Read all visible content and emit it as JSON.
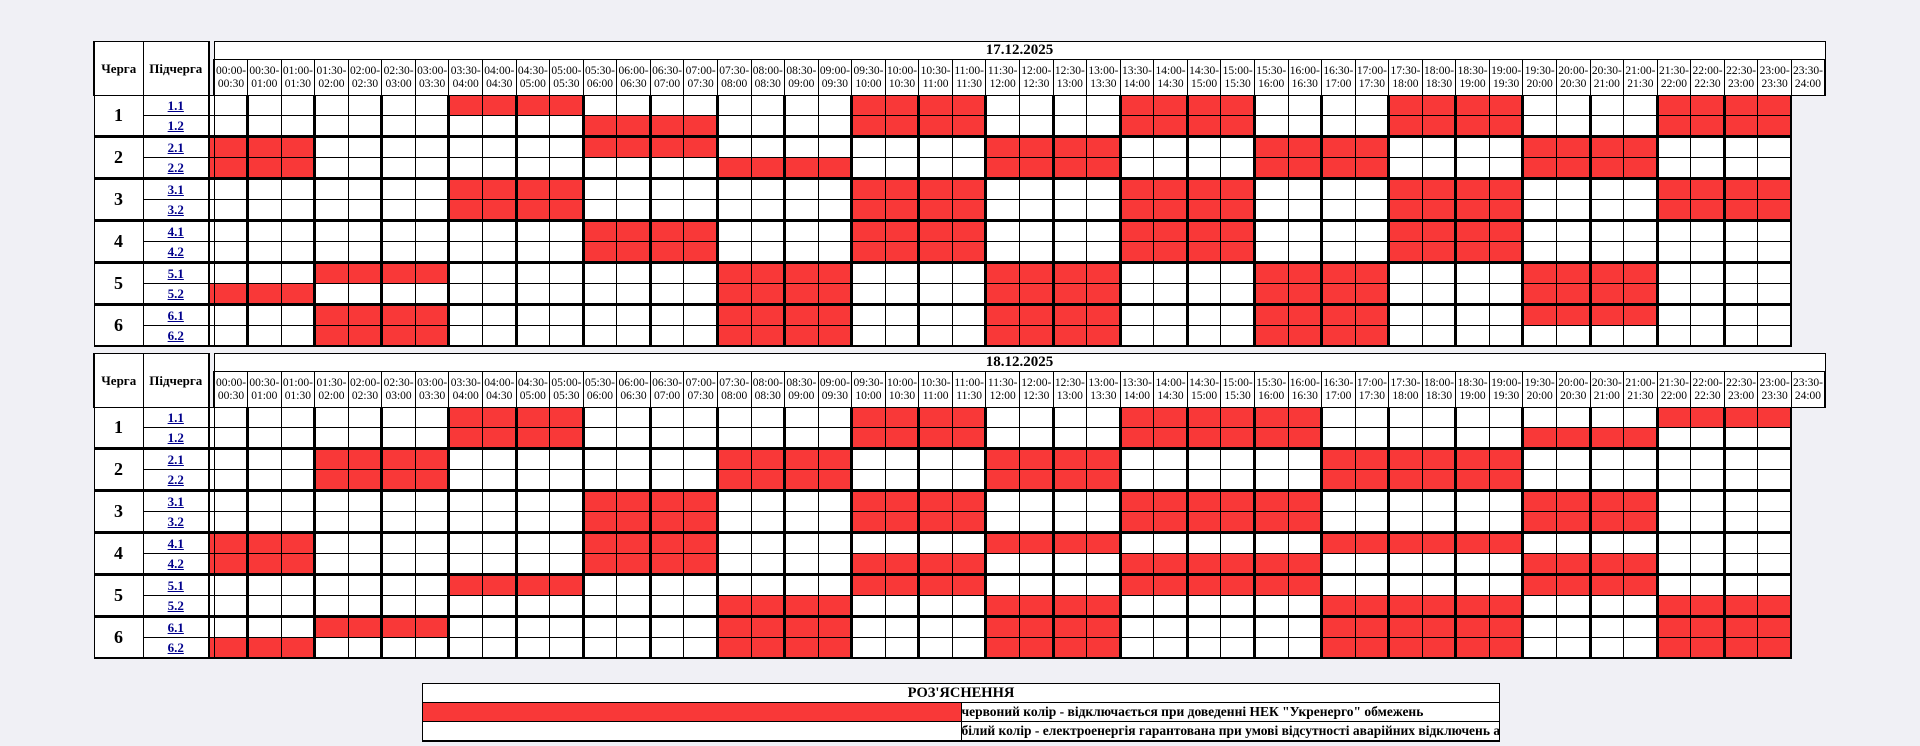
{
  "page": {
    "background": "#F0F0F5"
  },
  "colors": {
    "outage_red": "#F93838",
    "cell_white": "#FFFFFF",
    "border": "#000000",
    "subqueue_link_blue": "#00008B"
  },
  "table_header": {
    "queue": "Черга",
    "subqueue": "Підчерга"
  },
  "time_slots": [
    {
      "from": "00:00",
      "to": "00:30"
    },
    {
      "from": "00:30",
      "to": "01:00"
    },
    {
      "from": "01:00",
      "to": "01:30"
    },
    {
      "from": "01:30",
      "to": "02:00"
    },
    {
      "from": "02:00",
      "to": "02:30"
    },
    {
      "from": "02:30",
      "to": "03:00"
    },
    {
      "from": "03:00",
      "to": "03:30"
    },
    {
      "from": "03:30",
      "to": "04:00"
    },
    {
      "from": "04:00",
      "to": "04:30"
    },
    {
      "from": "04:30",
      "to": "05:00"
    },
    {
      "from": "05:00",
      "to": "05:30"
    },
    {
      "from": "05:30",
      "to": "06:00"
    },
    {
      "from": "06:00",
      "to": "06:30"
    },
    {
      "from": "06:30",
      "to": "07:00"
    },
    {
      "from": "07:00",
      "to": "07:30"
    },
    {
      "from": "07:30",
      "to": "08:00"
    },
    {
      "from": "08:00",
      "to": "08:30"
    },
    {
      "from": "08:30",
      "to": "09:00"
    },
    {
      "from": "09:00",
      "to": "09:30"
    },
    {
      "from": "09:30",
      "to": "10:00"
    },
    {
      "from": "10:00",
      "to": "10:30"
    },
    {
      "from": "10:30",
      "to": "11:00"
    },
    {
      "from": "11:00",
      "to": "11:30"
    },
    {
      "from": "11:30",
      "to": "12:00"
    },
    {
      "from": "12:00",
      "to": "12:30"
    },
    {
      "from": "12:30",
      "to": "13:00"
    },
    {
      "from": "13:00",
      "to": "13:30"
    },
    {
      "from": "13:30",
      "to": "14:00"
    },
    {
      "from": "14:00",
      "to": "14:30"
    },
    {
      "from": "14:30",
      "to": "15:00"
    },
    {
      "from": "15:00",
      "to": "15:30"
    },
    {
      "from": "15:30",
      "to": "16:00"
    },
    {
      "from": "16:00",
      "to": "16:30"
    },
    {
      "from": "16:30",
      "to": "17:00"
    },
    {
      "from": "17:00",
      "to": "17:30"
    },
    {
      "from": "17:30",
      "to": "18:00"
    },
    {
      "from": "18:00",
      "to": "18:30"
    },
    {
      "from": "18:30",
      "to": "19:00"
    },
    {
      "from": "19:00",
      "to": "19:30"
    },
    {
      "from": "19:30",
      "to": "20:00"
    },
    {
      "from": "20:00",
      "to": "20:30"
    },
    {
      "from": "20:30",
      "to": "21:00"
    },
    {
      "from": "21:00",
      "to": "21:30"
    },
    {
      "from": "21:30",
      "to": "22:00"
    },
    {
      "from": "22:00",
      "to": "22:30"
    },
    {
      "from": "22:30",
      "to": "23:00"
    },
    {
      "from": "23:00",
      "to": "23:30"
    },
    {
      "from": "23:30",
      "to": "24:00"
    }
  ],
  "schedules": [
    {
      "date": "17.12.2025",
      "rows": [
        {
          "queue": "1",
          "subqueue": "1.1",
          "red_ranges": [
            [
              9,
              12
            ],
            [
              21,
              24
            ],
            [
              29,
              32
            ],
            [
              37,
              40
            ],
            [
              45,
              48
            ]
          ]
        },
        {
          "queue": "1",
          "subqueue": "1.2",
          "red_ranges": [
            [
              13,
              16
            ],
            [
              21,
              24
            ],
            [
              29,
              32
            ],
            [
              37,
              40
            ],
            [
              45,
              48
            ]
          ]
        },
        {
          "queue": "2",
          "subqueue": "2.1",
          "red_ranges": [
            [
              1,
              4
            ],
            [
              13,
              16
            ],
            [
              25,
              28
            ],
            [
              33,
              36
            ],
            [
              41,
              44
            ]
          ]
        },
        {
          "queue": "2",
          "subqueue": "2.2",
          "red_ranges": [
            [
              1,
              4
            ],
            [
              17,
              20
            ],
            [
              25,
              28
            ],
            [
              33,
              36
            ],
            [
              41,
              44
            ]
          ]
        },
        {
          "queue": "3",
          "subqueue": "3.1",
          "red_ranges": [
            [
              9,
              12
            ],
            [
              21,
              24
            ],
            [
              29,
              32
            ],
            [
              37,
              40
            ],
            [
              45,
              48
            ]
          ]
        },
        {
          "queue": "3",
          "subqueue": "3.2",
          "red_ranges": [
            [
              9,
              12
            ],
            [
              21,
              24
            ],
            [
              29,
              32
            ],
            [
              37,
              40
            ],
            [
              45,
              48
            ]
          ]
        },
        {
          "queue": "4",
          "subqueue": "4.1",
          "red_ranges": [
            [
              13,
              16
            ],
            [
              21,
              24
            ],
            [
              29,
              32
            ],
            [
              37,
              40
            ]
          ]
        },
        {
          "queue": "4",
          "subqueue": "4.2",
          "red_ranges": [
            [
              13,
              16
            ],
            [
              21,
              24
            ],
            [
              29,
              32
            ],
            [
              37,
              40
            ]
          ]
        },
        {
          "queue": "5",
          "subqueue": "5.1",
          "red_ranges": [
            [
              5,
              8
            ],
            [
              17,
              20
            ],
            [
              25,
              28
            ],
            [
              33,
              36
            ],
            [
              41,
              44
            ]
          ]
        },
        {
          "queue": "5",
          "subqueue": "5.2",
          "red_ranges": [
            [
              1,
              4
            ],
            [
              17,
              20
            ],
            [
              25,
              28
            ],
            [
              33,
              36
            ],
            [
              41,
              44
            ]
          ]
        },
        {
          "queue": "6",
          "subqueue": "6.1",
          "red_ranges": [
            [
              5,
              8
            ],
            [
              17,
              20
            ],
            [
              25,
              28
            ],
            [
              33,
              36
            ],
            [
              41,
              44
            ]
          ]
        },
        {
          "queue": "6",
          "subqueue": "6.2",
          "red_ranges": [
            [
              5,
              8
            ],
            [
              17,
              20
            ],
            [
              25,
              28
            ],
            [
              33,
              36
            ]
          ]
        }
      ]
    },
    {
      "date": "18.12.2025",
      "rows": [
        {
          "queue": "1",
          "subqueue": "1.1",
          "red_ranges": [
            [
              9,
              12
            ],
            [
              21,
              24
            ],
            [
              29,
              34
            ],
            [
              45,
              48
            ]
          ]
        },
        {
          "queue": "1",
          "subqueue": "1.2",
          "red_ranges": [
            [
              9,
              12
            ],
            [
              21,
              24
            ],
            [
              29,
              34
            ],
            [
              41,
              44
            ]
          ]
        },
        {
          "queue": "2",
          "subqueue": "2.1",
          "red_ranges": [
            [
              5,
              8
            ],
            [
              17,
              20
            ],
            [
              25,
              28
            ],
            [
              35,
              40
            ]
          ]
        },
        {
          "queue": "2",
          "subqueue": "2.2",
          "red_ranges": [
            [
              5,
              8
            ],
            [
              17,
              20
            ],
            [
              25,
              28
            ],
            [
              35,
              40
            ]
          ]
        },
        {
          "queue": "3",
          "subqueue": "3.1",
          "red_ranges": [
            [
              13,
              16
            ],
            [
              21,
              24
            ],
            [
              29,
              34
            ],
            [
              41,
              44
            ]
          ]
        },
        {
          "queue": "3",
          "subqueue": "3.2",
          "red_ranges": [
            [
              13,
              16
            ],
            [
              21,
              24
            ],
            [
              29,
              34
            ],
            [
              41,
              44
            ]
          ]
        },
        {
          "queue": "4",
          "subqueue": "4.1",
          "red_ranges": [
            [
              1,
              4
            ],
            [
              13,
              16
            ],
            [
              25,
              28
            ],
            [
              35,
              40
            ]
          ]
        },
        {
          "queue": "4",
          "subqueue": "4.2",
          "red_ranges": [
            [
              1,
              4
            ],
            [
              13,
              16
            ],
            [
              21,
              24
            ],
            [
              29,
              34
            ],
            [
              41,
              44
            ]
          ]
        },
        {
          "queue": "5",
          "subqueue": "5.1",
          "red_ranges": [
            [
              9,
              12
            ],
            [
              21,
              24
            ],
            [
              29,
              34
            ],
            [
              41,
              44
            ]
          ]
        },
        {
          "queue": "5",
          "subqueue": "5.2",
          "red_ranges": [
            [
              17,
              20
            ],
            [
              25,
              28
            ],
            [
              35,
              40
            ],
            [
              45,
              48
            ]
          ]
        },
        {
          "queue": "6",
          "subqueue": "6.1",
          "red_ranges": [
            [
              5,
              8
            ],
            [
              17,
              20
            ],
            [
              25,
              28
            ],
            [
              35,
              40
            ],
            [
              45,
              48
            ]
          ]
        },
        {
          "queue": "6",
          "subqueue": "6.2",
          "red_ranges": [
            [
              1,
              4
            ],
            [
              17,
              20
            ],
            [
              25,
              28
            ],
            [
              35,
              40
            ],
            [
              45,
              48
            ]
          ]
        }
      ]
    }
  ],
  "legend": {
    "title": "РОЗ'ЯСНЕННЯ",
    "items": [
      {
        "swatch": "red",
        "label": "червоний колір - відключається при доведенні НЕК \"Укренерго\" обмежень"
      },
      {
        "swatch": "white",
        "label": "білий колір - електроенергія гарантована при умові відсутності аварійних відключень або планових робіт"
      }
    ]
  }
}
